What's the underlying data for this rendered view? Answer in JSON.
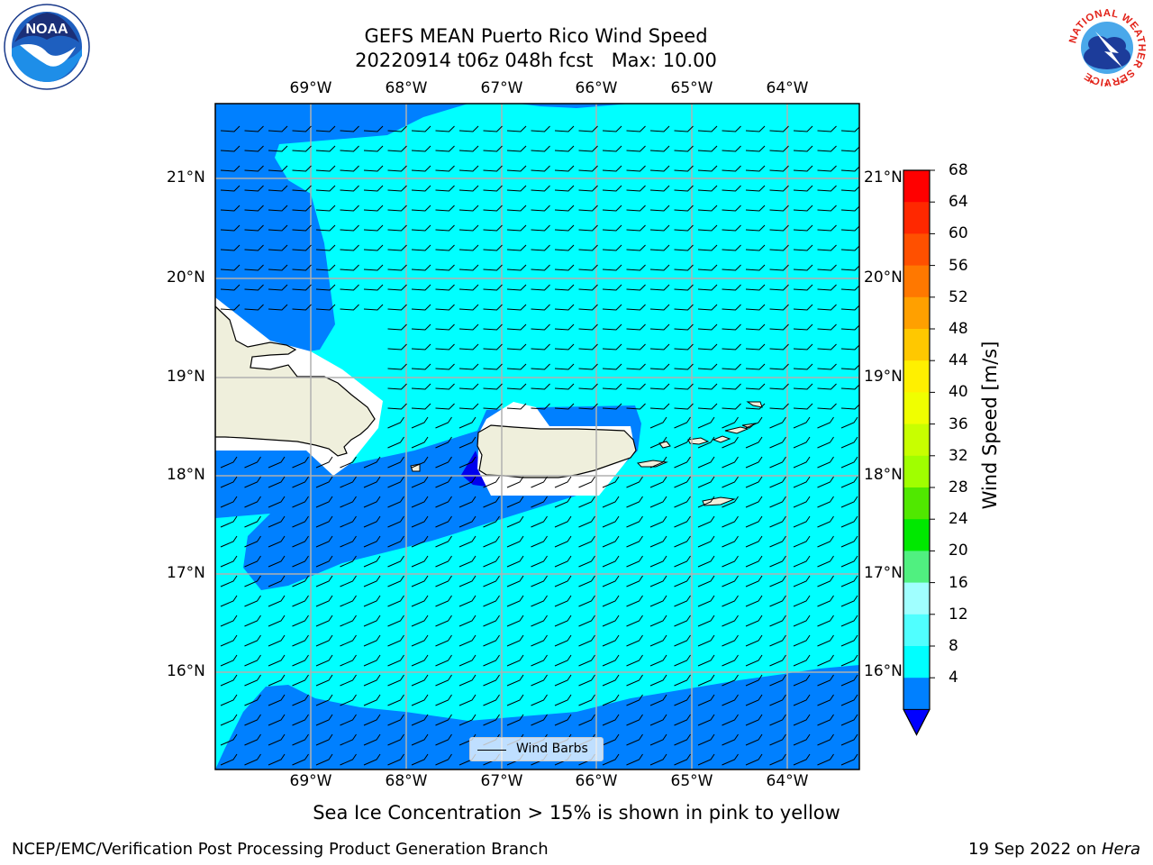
{
  "title": {
    "line1": "GEFS MEAN Puerto Rico Wind Speed",
    "line2": "20220914 t06z 048h fcst   Max: 10.00"
  },
  "logos": {
    "left_text": "NOAA",
    "right_text": "NATIONAL WEATHER SERVICE"
  },
  "map": {
    "lon_labels": [
      "69°W",
      "68°W",
      "67°W",
      "66°W",
      "65°W",
      "64°W"
    ],
    "lat_labels": [
      "21°N",
      "20°N",
      "19°N",
      "18°N",
      "17°N",
      "16°N"
    ],
    "colors": {
      "calm": "#0000ee",
      "low": "#0080ff",
      "mid": "#00ffff",
      "land": "#efefdc",
      "mask": "#ffffff",
      "grid": "#b0b0b0"
    },
    "legend": {
      "label": "Wind Barbs"
    }
  },
  "colorbar": {
    "title": "Wind Speed [m/s]",
    "ticks": [
      "68",
      "64",
      "60",
      "56",
      "52",
      "48",
      "44",
      "40",
      "36",
      "32",
      "28",
      "24",
      "20",
      "16",
      "12",
      "8",
      "4"
    ],
    "colors": [
      "#ff0000",
      "#ff2800",
      "#ff5000",
      "#ff7800",
      "#ffa000",
      "#ffc800",
      "#fff000",
      "#f0ff00",
      "#c8ff00",
      "#a0ff00",
      "#50e800",
      "#00e800",
      "#50f080",
      "#a0ffff",
      "#50ffff",
      "#00ffff",
      "#0080ff"
    ],
    "extend_color": "#0000ff"
  },
  "caption": "Sea Ice Concentration > 15% is shown in pink to yellow",
  "footer": {
    "left": "NCEP/EMC/Verification Post Processing Product Generation Branch",
    "right_prefix": "19 Sep 2022 on ",
    "right_italic": "Hera"
  }
}
